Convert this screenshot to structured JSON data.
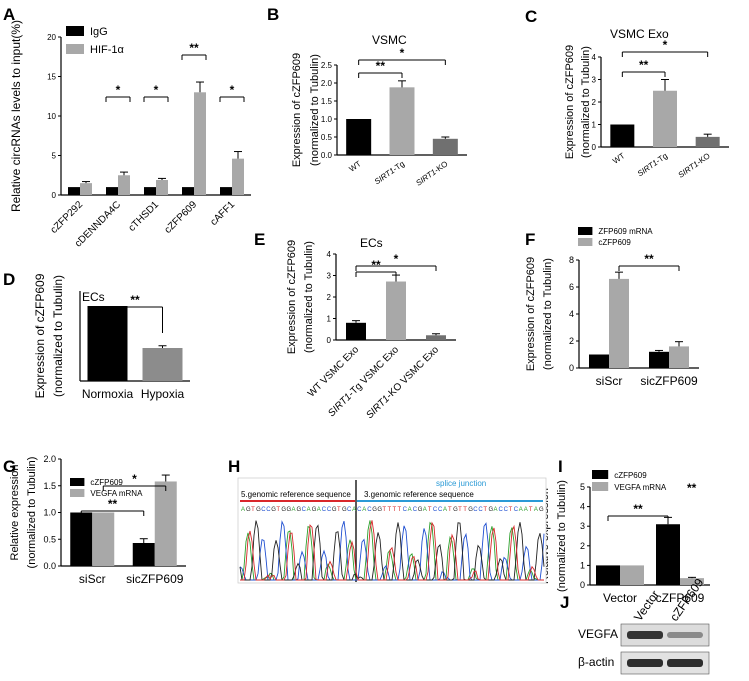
{
  "colors": {
    "black": "#000000",
    "grey": "#a8a8a8",
    "red": "#d9262b",
    "blue": "#2a9ad6"
  },
  "chart_data": [
    {
      "panel": "A",
      "type": "bar",
      "ylabel": "Relative circRNAs levels to input(%)",
      "ylim": [
        0,
        20
      ],
      "yticks": [
        "0",
        "5",
        "10",
        "15",
        "20"
      ],
      "categories": [
        "cZFP292",
        "cDENNDA4C",
        "cTHSD1",
        "cZFP609",
        "cAFF1"
      ],
      "series": [
        {
          "name": "IgG",
          "color": "black",
          "values": [
            1,
            1,
            1,
            1,
            1
          ],
          "errors": [
            0,
            0,
            0,
            0,
            0
          ]
        },
        {
          "name": "HIF-1α",
          "color": "grey",
          "values": [
            1.5,
            2.5,
            1.9,
            13,
            4.6
          ],
          "errors": [
            0.2,
            0.4,
            0.2,
            1.3,
            0.9
          ]
        }
      ],
      "legend": [
        "IgG",
        "HIF-1α"
      ],
      "sig": [
        "*",
        "*",
        "**",
        "*"
      ]
    },
    {
      "panel": "B",
      "type": "bar",
      "title": "VSMC",
      "ylabel": [
        "Expression of cZFP609",
        "(normalized to Tubulin)"
      ],
      "ylim": [
        0,
        2.5
      ],
      "yticks": [
        "0.0",
        "0.5",
        "1.0",
        "1.5",
        "2.0",
        "2.5"
      ],
      "categories": [
        "WT",
        "SIRT1-Tg",
        "SIRT1-KO"
      ],
      "values": [
        1.0,
        1.88,
        0.45
      ],
      "errors": [
        0,
        0.18,
        0.05
      ],
      "sig": [
        "**",
        "*"
      ]
    },
    {
      "panel": "C",
      "type": "bar",
      "title": "VSMC Exo",
      "ylabel": [
        "Expression of cZFP609",
        "(normalized to Tubulin)"
      ],
      "ylim": [
        0,
        4
      ],
      "yticks": [
        "0",
        "1",
        "2",
        "3",
        "4"
      ],
      "categories": [
        "WT",
        "SIRT1-Tg",
        "SIRT1-KO"
      ],
      "values": [
        1.0,
        2.5,
        0.45
      ],
      "errors": [
        0,
        0.5,
        0.12
      ],
      "sig": [
        "**",
        "*"
      ]
    },
    {
      "panel": "D",
      "type": "bar",
      "title": "ECs",
      "ylabel": [
        "Expression of cZFP609",
        "(normalized to Tubulin)"
      ],
      "categories": [
        "Normoxia",
        "Hypoxia"
      ],
      "values": [
        1.0,
        0.44
      ],
      "errors": [
        0,
        0.03
      ],
      "sig": [
        "**"
      ]
    },
    {
      "panel": "E",
      "type": "bar",
      "title": "ECs",
      "ylabel": [
        "Expression of cZFP609",
        "(normalized to Tubulin)"
      ],
      "ylim": [
        0,
        4
      ],
      "yticks": [
        "0",
        "1",
        "2",
        "3",
        "4"
      ],
      "categories": [
        "WT VSMC Exo",
        "SIRT1-Tg VSMC Exo",
        "SIRT1-KO VSMC Exo"
      ],
      "values": [
        0.8,
        2.72,
        0.22
      ],
      "errors": [
        0.1,
        0.3,
        0.07
      ],
      "sig": [
        "**",
        "*"
      ]
    },
    {
      "panel": "F",
      "type": "bar",
      "ylabel": [
        "Expression of cZFP609",
        "(normalized to Tubulin)"
      ],
      "ylim": [
        0,
        8
      ],
      "yticks": [
        "0",
        "2",
        "4",
        "6",
        "8"
      ],
      "categories": [
        "siScr",
        "sicZFP609"
      ],
      "series": [
        {
          "name": "ZFP609 mRNA",
          "color": "black",
          "values": [
            1.0,
            1.2
          ],
          "errors": [
            0,
            0.1
          ]
        },
        {
          "name": "cZFP609",
          "color": "grey",
          "values": [
            6.6,
            1.6
          ],
          "errors": [
            0.5,
            0.35
          ]
        }
      ],
      "legend": [
        "ZFP609 mRNA",
        "cZFP609"
      ],
      "sig": [
        "**"
      ]
    },
    {
      "panel": "G",
      "type": "bar",
      "ylabel": [
        "Relative expression",
        "(normalized to Tubulin)"
      ],
      "ylim": [
        0,
        2.0
      ],
      "yticks": [
        "0.0",
        "0.5",
        "1.0",
        "1.5",
        "2.0"
      ],
      "categories": [
        "siScr",
        "sicZFP609"
      ],
      "series": [
        {
          "name": "cZFP609",
          "color": "black",
          "values": [
            1.0,
            0.43
          ],
          "errors": [
            0,
            0.08
          ]
        },
        {
          "name": "VEGFA mRNA",
          "color": "grey",
          "values": [
            1.0,
            1.58
          ],
          "errors": [
            0,
            0.12
          ]
        }
      ],
      "legend": [
        "cZFP609",
        "VEGFA mRNA"
      ],
      "sig": [
        "*",
        "**"
      ]
    },
    {
      "panel": "I",
      "type": "bar",
      "ylabel": [
        "Relative expression",
        "(normalized to Tubulin)"
      ],
      "ylim": [
        0,
        5
      ],
      "yticks": [
        "0",
        "1",
        "2",
        "3",
        "4",
        "5"
      ],
      "categories": [
        "Vector",
        "cZFP609"
      ],
      "series": [
        {
          "name": "cZFP609",
          "color": "black",
          "values": [
            1.0,
            3.1
          ],
          "errors": [
            0,
            0.35
          ]
        },
        {
          "name": "VEGFA mRNA",
          "color": "grey",
          "values": [
            1.0,
            0.35
          ],
          "errors": [
            0,
            0.04
          ]
        }
      ],
      "legend": [
        "cZFP609",
        "VEGFA mRNA"
      ],
      "legend_sig": "**",
      "sig": [
        "**"
      ]
    }
  ],
  "panel_H": {
    "label_left": "5.genomic reference sequence",
    "label_right": "3.genomic reference sequence",
    "junction_label": "splice junction"
  },
  "panel_J": {
    "columns": [
      "Vector",
      "cZFP609"
    ],
    "rows": [
      "VEGFA",
      "β-actin"
    ]
  },
  "panel_letters": [
    "A",
    "B",
    "C",
    "D",
    "E",
    "F",
    "G",
    "H",
    "I",
    "J"
  ]
}
